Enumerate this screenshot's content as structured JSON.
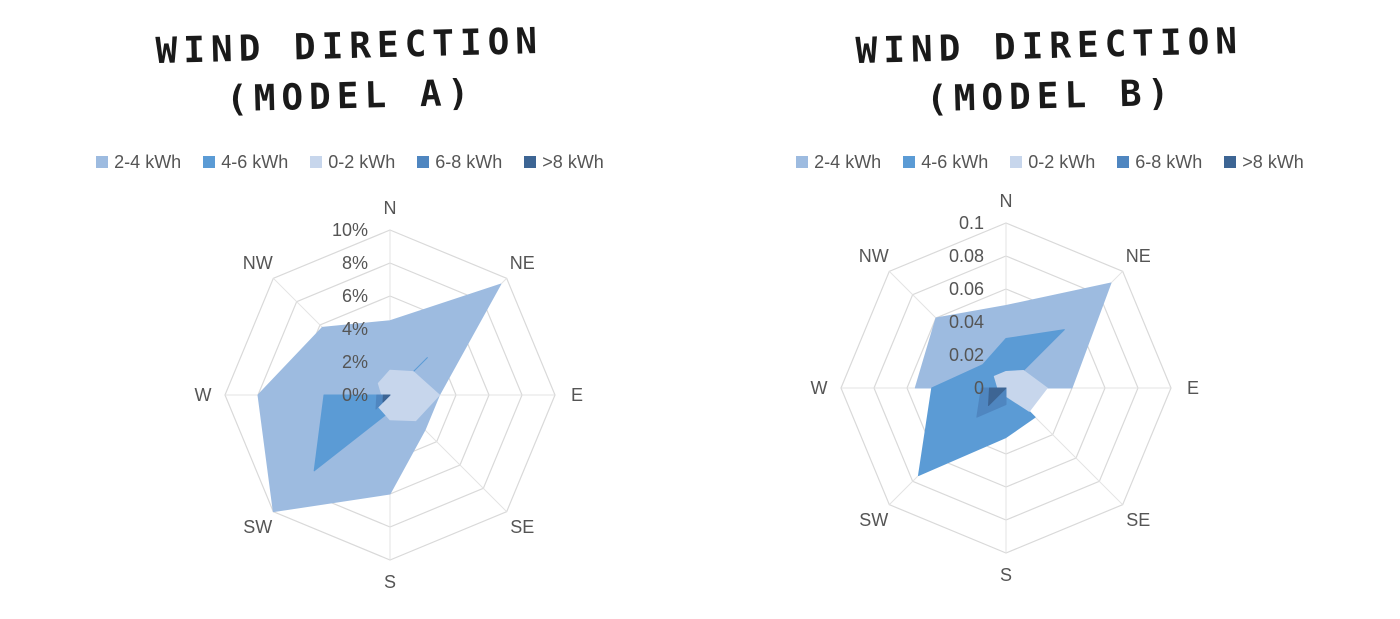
{
  "chart_data": [
    {
      "type": "radar",
      "title_lines": [
        "WIND DIRECTION",
        "(MODEL A)"
      ],
      "directions": [
        "N",
        "NE",
        "E",
        "SE",
        "S",
        "SW",
        "W",
        "NW"
      ],
      "ticks": [
        "0%",
        "2%",
        "4%",
        "6%",
        "8%",
        "10%"
      ],
      "rmax": 0.1,
      "legend_position": "top",
      "series": [
        {
          "name": "2-4 kWh",
          "color": "#9dbbe0",
          "values": [
            0.045,
            0.095,
            0.03,
            0.03,
            0.06,
            0.1,
            0.08,
            0.058
          ]
        },
        {
          "name": "4-6 kWh",
          "color": "#5b9bd5",
          "values": [
            0.0,
            0.032,
            0.0,
            0.0,
            0.01,
            0.065,
            0.04,
            0.0
          ]
        },
        {
          "name": "0-2 kWh",
          "color": "#c7d6ec",
          "values": [
            0.015,
            0.02,
            0.03,
            0.022,
            0.015,
            0.01,
            0.005,
            0.01
          ]
        },
        {
          "name": "6-8 kWh",
          "color": "#4f86c0",
          "values": [
            0.0,
            0.0,
            0.0,
            0.0,
            0.0,
            0.012,
            0.008,
            0.0
          ]
        },
        {
          "name": ">8 kWh",
          "color": "#3d6594",
          "values": [
            0.0,
            0.0,
            0.0,
            0.0,
            0.0,
            0.006,
            0.004,
            0.0
          ]
        }
      ]
    },
    {
      "type": "radar",
      "title_lines": [
        "WIND DIRECTION",
        "(MODEL B)"
      ],
      "directions": [
        "N",
        "NE",
        "E",
        "SE",
        "S",
        "SW",
        "W",
        "NW"
      ],
      "ticks": [
        "0",
        "0.02",
        "0.04",
        "0.06",
        "0.08",
        "0.1"
      ],
      "rmax": 0.1,
      "legend_position": "top",
      "series": [
        {
          "name": "2-4 kWh",
          "color": "#9dbbe0",
          "values": [
            0.05,
            0.09,
            0.04,
            0.0,
            0.0,
            0.0,
            0.055,
            0.06
          ]
        },
        {
          "name": "4-6 kWh",
          "color": "#5b9bd5",
          "values": [
            0.03,
            0.05,
            0.0,
            0.025,
            0.03,
            0.075,
            0.045,
            0.02
          ]
        },
        {
          "name": "0-2 kWh",
          "color": "#c7d6ec",
          "values": [
            0.01,
            0.015,
            0.025,
            0.02,
            0.005,
            0.005,
            0.005,
            0.01
          ]
        },
        {
          "name": "6-8 kWh",
          "color": "#4f86c0",
          "values": [
            0.0,
            0.0,
            0.0,
            0.0,
            0.01,
            0.025,
            0.015,
            0.0
          ]
        },
        {
          "name": ">8 kWh",
          "color": "#3d6594",
          "values": [
            0.0,
            0.0,
            0.0,
            0.0,
            0.0,
            0.015,
            0.01,
            0.0
          ]
        }
      ]
    }
  ]
}
